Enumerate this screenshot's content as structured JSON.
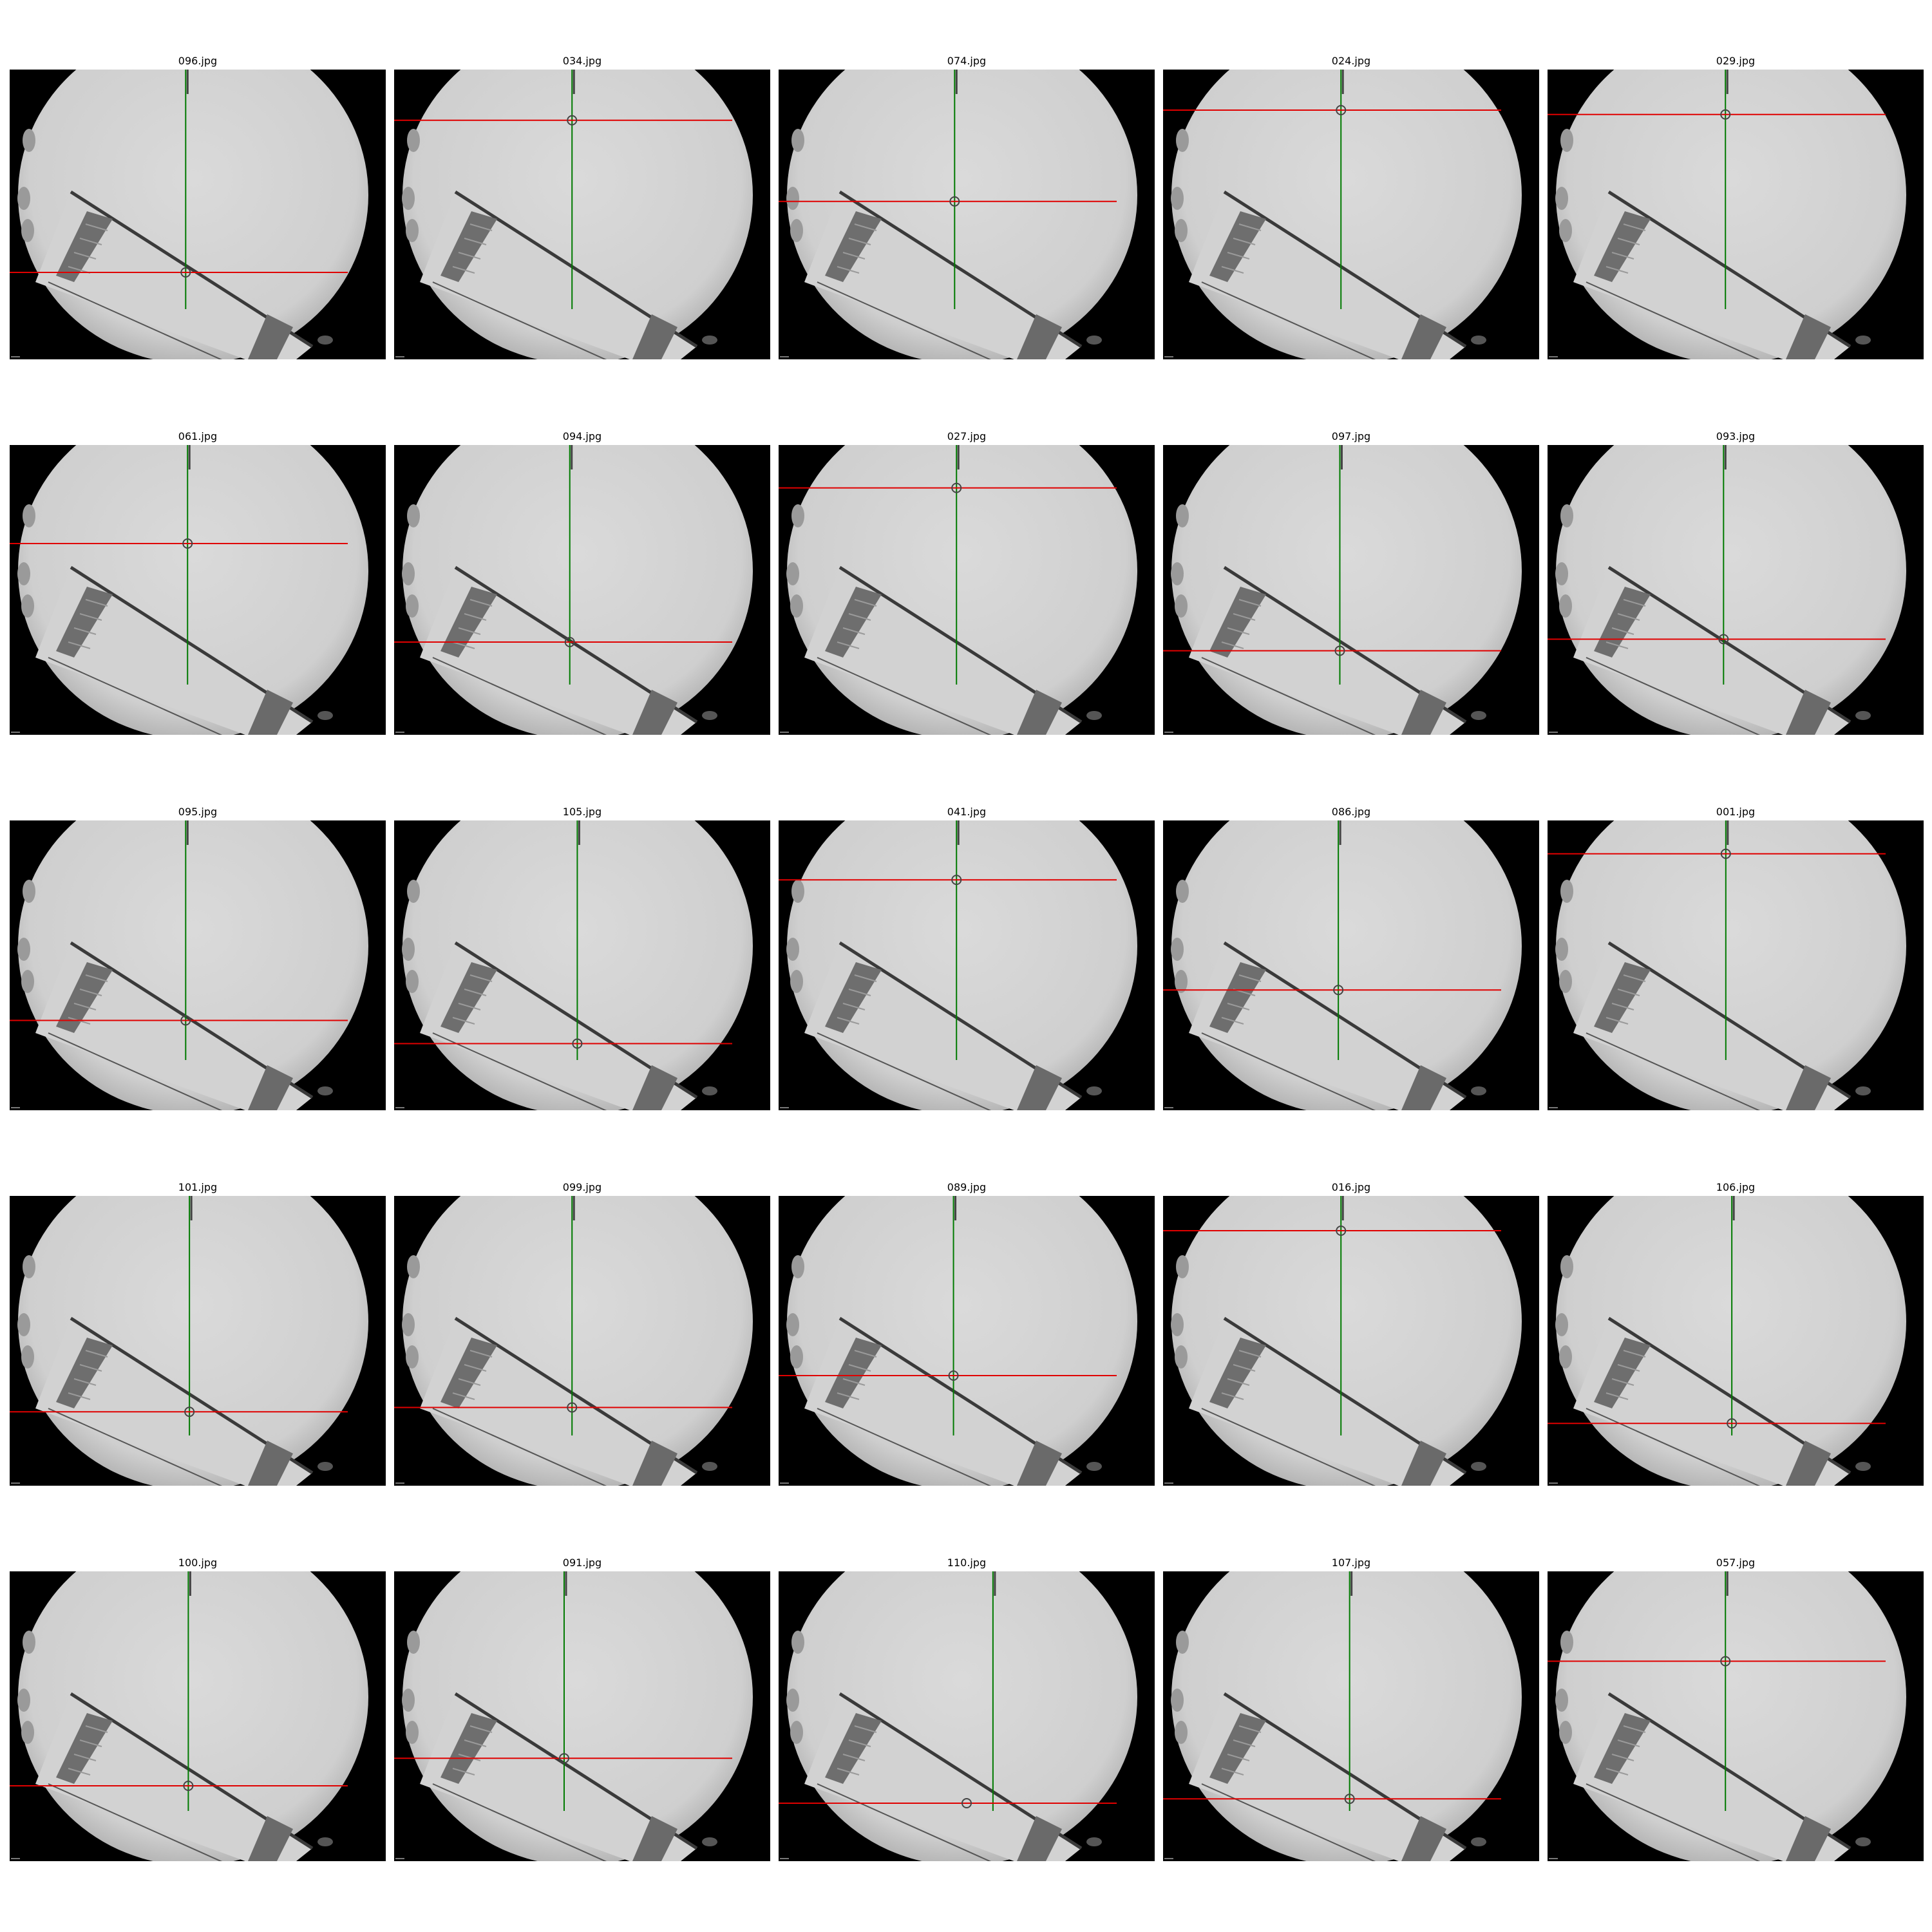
{
  "colors": {
    "background": "#ffffff",
    "frame_background": "#000000",
    "field_light": "#d6d6d6",
    "horizontal_line": "#e00000",
    "vertical_line": "#007a00",
    "marker": "#444444"
  },
  "rows": [
    [
      {
        "title": "096.jpg",
        "v": 0.468,
        "h": 0.7,
        "vtop": 0.0
      },
      {
        "title": "034.jpg",
        "v": 0.473,
        "h": 0.175,
        "vtop": 0.0
      },
      {
        "title": "074.jpg",
        "v": 0.468,
        "h": 0.455,
        "vtop": 0.0
      },
      {
        "title": "024.jpg",
        "v": 0.473,
        "h": 0.14,
        "vtop": 0.0
      },
      {
        "title": "029.jpg",
        "v": 0.473,
        "h": 0.155,
        "vtop": 0.0
      }
    ],
    [
      {
        "title": "061.jpg",
        "v": 0.473,
        "h": 0.34,
        "vtop": 0.0
      },
      {
        "title": "094.jpg",
        "v": 0.467,
        "h": 0.68,
        "vtop": 0.0
      },
      {
        "title": "027.jpg",
        "v": 0.473,
        "h": 0.148,
        "vtop": 0.0
      },
      {
        "title": "097.jpg",
        "v": 0.47,
        "h": 0.71,
        "vtop": 0.0
      },
      {
        "title": "093.jpg",
        "v": 0.468,
        "h": 0.67,
        "vtop": 0.0
      }
    ],
    [
      {
        "title": "095.jpg",
        "v": 0.468,
        "h": 0.69,
        "vtop": 0.0
      },
      {
        "title": "105.jpg",
        "v": 0.487,
        "h": 0.77,
        "vtop": 0.0
      },
      {
        "title": "041.jpg",
        "v": 0.473,
        "h": 0.205,
        "vtop": 0.0
      },
      {
        "title": "086.jpg",
        "v": 0.466,
        "h": 0.585,
        "vtop": 0.0
      },
      {
        "title": "001.jpg",
        "v": 0.474,
        "h": 0.115,
        "vtop": 0.0
      }
    ],
    [
      {
        "title": "101.jpg",
        "v": 0.478,
        "h": 0.745,
        "vtop": 0.0
      },
      {
        "title": "099.jpg",
        "v": 0.473,
        "h": 0.73,
        "vtop": 0.0
      },
      {
        "title": "089.jpg",
        "v": 0.465,
        "h": 0.62,
        "vtop": 0.0
      },
      {
        "title": "016.jpg",
        "v": 0.473,
        "h": 0.12,
        "vtop": 0.0
      },
      {
        "title": "106.jpg",
        "v": 0.49,
        "h": 0.785,
        "vtop": 0.0
      }
    ],
    [
      {
        "title": "100.jpg",
        "v": 0.475,
        "h": 0.74,
        "vtop": 0.0
      },
      {
        "title": "091.jpg",
        "v": 0.452,
        "h": 0.645,
        "vtop": 0.0
      },
      {
        "title": "110.jpg",
        "v": 0.57,
        "h": 0.8,
        "vtop": 0.0,
        "marker_x": 0.5
      },
      {
        "title": "107.jpg",
        "v": 0.496,
        "h": 0.785,
        "vtop": 0.0
      },
      {
        "title": "057.jpg",
        "v": 0.473,
        "h": 0.31,
        "vtop": 0.0
      }
    ]
  ]
}
